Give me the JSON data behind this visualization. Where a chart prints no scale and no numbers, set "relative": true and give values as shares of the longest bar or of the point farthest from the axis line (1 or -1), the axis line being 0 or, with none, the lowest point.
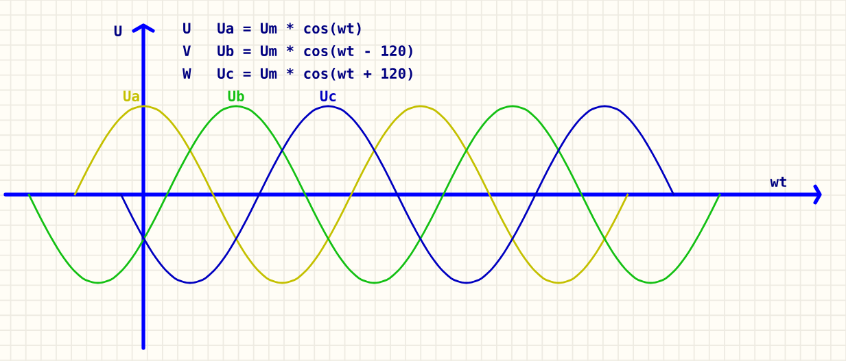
{
  "chart_data": {
    "type": "line",
    "relative": true,
    "xlabel": "wt",
    "ylabel": "U",
    "annotations": [
      "U   Ua = Um * cos(wt)",
      "V   Ub = Um * cos(wt - 120)",
      "W   Uc = Um * cos(wt + 120)"
    ],
    "categories": [
      null,
      null,
      null,
      null,
      null,
      null,
      null,
      null,
      null,
      null,
      null,
      null,
      null,
      null,
      null,
      null,
      null,
      null,
      null,
      null,
      null,
      null,
      null,
      null,
      null,
      null,
      null,
      null,
      null,
      null,
      null,
      null,
      null,
      null,
      null,
      null,
      null,
      null,
      null,
      null,
      null,
      null,
      null,
      null,
      null,
      null,
      null,
      null,
      null,
      null,
      null,
      null,
      null,
      null,
      null,
      null,
      null,
      null,
      null,
      null,
      null
    ],
    "series": [
      {
        "name": "Ua",
        "color": "#c4c000",
        "values": [
          null,
          null,
          null,
          null,
          0,
          0.26,
          0.5,
          0.71,
          0.87,
          0.97,
          1,
          0.97,
          0.87,
          0.71,
          0.5,
          0.26,
          0,
          -0.26,
          -0.5,
          -0.71,
          -0.87,
          -0.97,
          -1,
          -0.97,
          -0.87,
          -0.71,
          -0.5,
          -0.26,
          0,
          0.26,
          0.5,
          0.71,
          0.87,
          0.97,
          1,
          0.97,
          0.87,
          0.71,
          0.5,
          0.26,
          0,
          -0.26,
          -0.5,
          -0.71,
          -0.87,
          -0.97,
          -1,
          -0.97,
          -0.87,
          -0.71,
          -0.5,
          -0.26,
          0,
          null,
          null,
          null,
          null,
          null,
          null,
          null,
          null
        ]
      },
      {
        "name": "Ub",
        "color": "#14c014",
        "values": [
          0,
          -0.26,
          -0.5,
          -0.71,
          -0.87,
          -0.97,
          -1,
          -0.97,
          -0.87,
          -0.71,
          -0.5,
          -0.26,
          0,
          0.26,
          0.5,
          0.71,
          0.87,
          0.97,
          1,
          0.97,
          0.87,
          0.71,
          0.5,
          0.26,
          0,
          -0.26,
          -0.5,
          -0.71,
          -0.87,
          -0.97,
          -1,
          -0.97,
          -0.87,
          -0.71,
          -0.5,
          -0.26,
          0,
          0.26,
          0.5,
          0.71,
          0.87,
          0.97,
          1,
          0.97,
          0.87,
          0.71,
          0.5,
          0.26,
          0,
          -0.26,
          -0.5,
          -0.71,
          -0.87,
          -0.97,
          -1,
          -0.97,
          -0.87,
          -0.71,
          -0.5,
          -0.26,
          0
        ]
      },
      {
        "name": "Uc",
        "color": "#0000c0",
        "values": [
          null,
          null,
          null,
          null,
          null,
          null,
          null,
          null,
          0,
          -0.26,
          -0.5,
          -0.71,
          -0.87,
          -0.97,
          -1,
          -0.97,
          -0.87,
          -0.71,
          -0.5,
          -0.26,
          0,
          0.26,
          0.5,
          0.71,
          0.87,
          0.97,
          1,
          0.97,
          0.87,
          0.71,
          0.5,
          0.26,
          0,
          -0.26,
          -0.5,
          -0.71,
          -0.87,
          -0.97,
          -1,
          -0.97,
          -0.87,
          -0.71,
          -0.5,
          -0.26,
          0,
          0.26,
          0.5,
          0.71,
          0.87,
          0.97,
          1,
          0.97,
          0.87,
          0.71,
          0.5,
          0.26,
          0,
          null,
          null,
          null,
          null
        ]
      }
    ],
    "ref_lines": [
      {
        "axis": "y",
        "value": 0,
        "color": "#0000ff"
      }
    ],
    "grid": true
  }
}
